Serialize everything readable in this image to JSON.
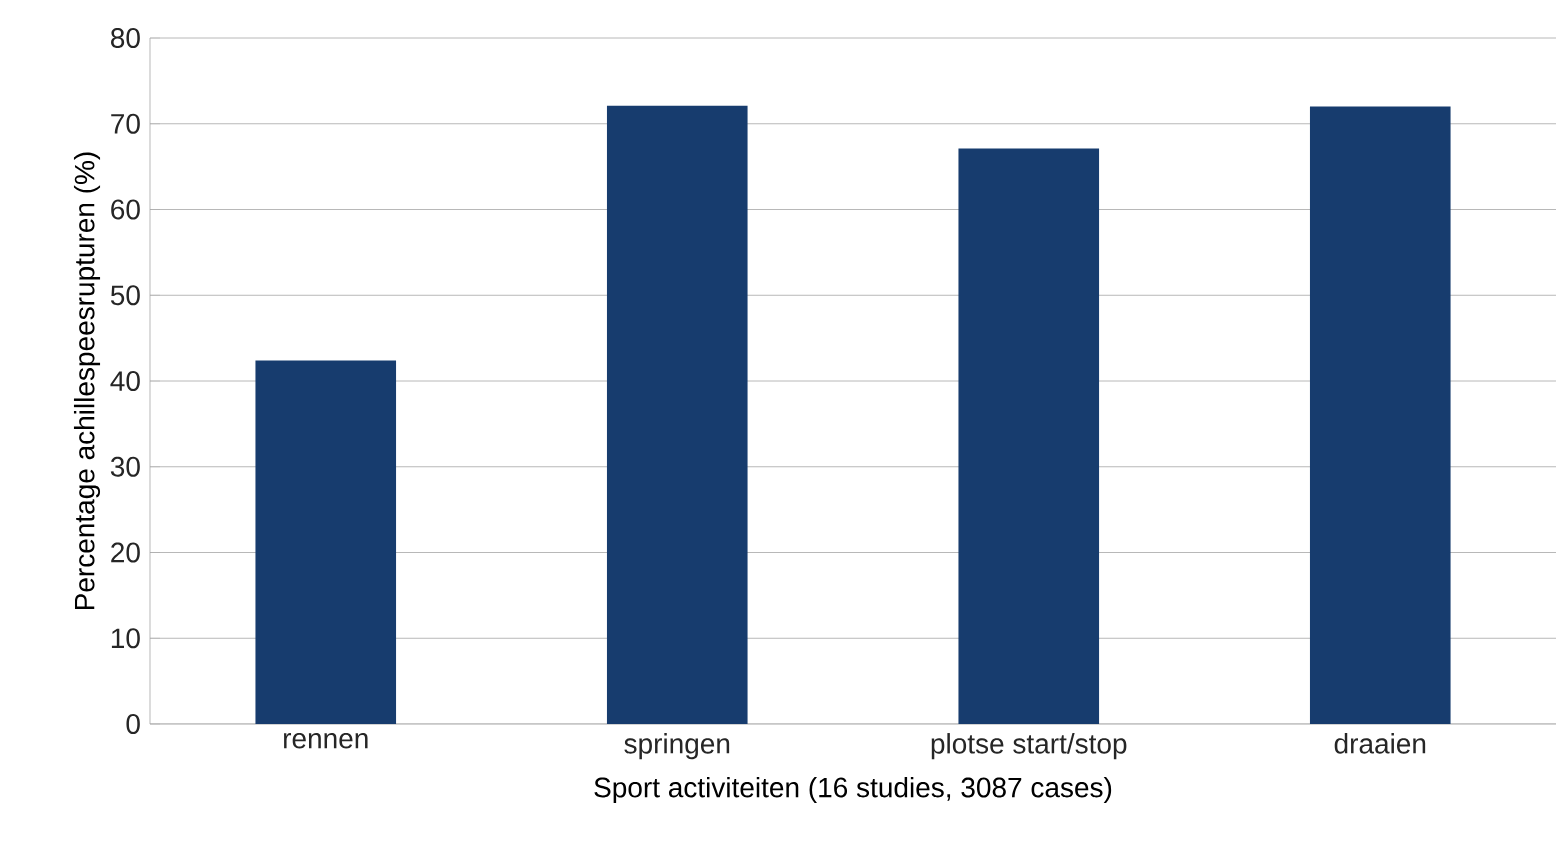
{
  "chart_data": {
    "type": "bar",
    "xlabel": "Sport activiteiten (16 studies, 3087 cases)",
    "ylabel": "Percentage achillespeesrupturen (%)",
    "categories": [
      "rennen",
      "springen",
      "plotse start/stop",
      "draaien"
    ],
    "values": [
      42.4,
      72.1,
      67.1,
      72.0
    ],
    "color": "#173c6e",
    "ylim": [
      0,
      80
    ],
    "yticks": [
      0,
      10,
      20,
      30,
      40,
      50,
      60,
      70,
      80
    ],
    "grid": "y"
  }
}
